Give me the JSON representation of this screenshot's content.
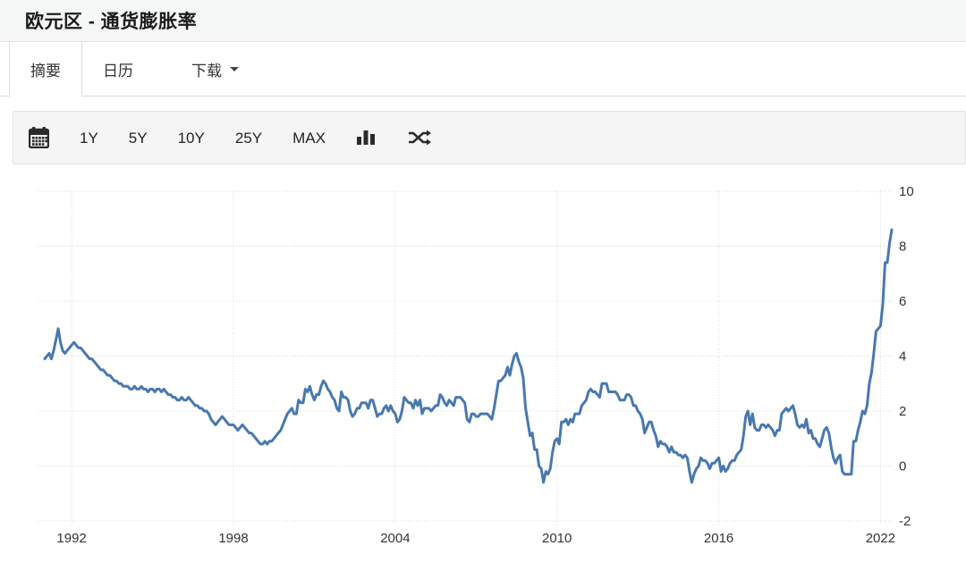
{
  "header": {
    "title": "欧元区 - 通货膨胀率"
  },
  "tabs": {
    "summary": "摘要",
    "calendar": "日历",
    "download": "下载"
  },
  "toolbar": {
    "ranges": [
      "1Y",
      "5Y",
      "10Y",
      "25Y",
      "MAX"
    ],
    "icons": [
      "calendar-icon",
      "bar-chart-icon",
      "shuffle-icon"
    ]
  },
  "colors": {
    "line": "#4878af",
    "grid": "#d9d9d9",
    "toolbar_bg": "#f5f5f5",
    "header_bg": "#f5f6f6",
    "border": "#e2e2e2",
    "text": "#333333"
  },
  "chart_data": {
    "type": "line",
    "title": "欧元区 - 通货膨胀率",
    "frequency": "monthly",
    "x_start": "1991-01",
    "x_end": "2022-06",
    "x_tick_labels": [
      "1992",
      "1998",
      "2004",
      "2010",
      "2016",
      "2022"
    ],
    "y_ticks": [
      10,
      8,
      6,
      4,
      2,
      0,
      -2
    ],
    "ylim": [
      -2,
      10
    ],
    "xlabel": "",
    "ylabel": "",
    "grid": "dotted",
    "legend": "none",
    "line_color": "#4878af",
    "values": [
      3.9,
      4.0,
      4.1,
      3.9,
      4.2,
      4.6,
      5.0,
      4.5,
      4.2,
      4.1,
      4.2,
      4.3,
      4.4,
      4.5,
      4.4,
      4.3,
      4.3,
      4.2,
      4.1,
      4.0,
      3.9,
      3.9,
      3.8,
      3.7,
      3.6,
      3.5,
      3.5,
      3.4,
      3.3,
      3.3,
      3.2,
      3.1,
      3.1,
      3.0,
      3.0,
      2.9,
      2.9,
      2.9,
      2.8,
      2.8,
      2.9,
      2.8,
      2.8,
      2.9,
      2.8,
      2.8,
      2.7,
      2.8,
      2.8,
      2.7,
      2.8,
      2.8,
      2.7,
      2.8,
      2.7,
      2.6,
      2.6,
      2.5,
      2.5,
      2.4,
      2.4,
      2.5,
      2.4,
      2.4,
      2.5,
      2.4,
      2.3,
      2.2,
      2.2,
      2.1,
      2.1,
      2.0,
      2.0,
      1.9,
      1.7,
      1.6,
      1.5,
      1.6,
      1.7,
      1.8,
      1.7,
      1.6,
      1.5,
      1.5,
      1.5,
      1.4,
      1.3,
      1.4,
      1.5,
      1.4,
      1.3,
      1.2,
      1.2,
      1.1,
      1.0,
      0.9,
      0.8,
      0.8,
      0.9,
      0.8,
      0.9,
      0.9,
      1.0,
      1.1,
      1.2,
      1.3,
      1.5,
      1.7,
      1.9,
      2.0,
      2.1,
      1.9,
      1.9,
      2.4,
      2.3,
      2.3,
      2.8,
      2.7,
      2.9,
      2.6,
      2.4,
      2.6,
      2.6,
      2.9,
      3.1,
      3.0,
      2.8,
      2.7,
      2.5,
      2.4,
      2.1,
      2.0,
      2.7,
      2.5,
      2.5,
      2.4,
      2.0,
      1.8,
      1.9,
      2.1,
      2.1,
      2.3,
      2.3,
      2.3,
      2.1,
      2.4,
      2.4,
      2.1,
      1.8,
      1.9,
      1.9,
      2.1,
      2.2,
      2.0,
      2.2,
      2.0,
      1.9,
      1.6,
      1.7,
      2.0,
      2.5,
      2.4,
      2.3,
      2.3,
      2.1,
      2.4,
      2.2,
      2.4,
      1.9,
      2.1,
      2.1,
      2.1,
      2.0,
      2.1,
      2.2,
      2.2,
      2.6,
      2.5,
      2.3,
      2.2,
      2.4,
      2.3,
      2.2,
      2.5,
      2.5,
      2.5,
      2.4,
      2.3,
      1.7,
      1.6,
      1.9,
      1.9,
      1.8,
      1.8,
      1.9,
      1.9,
      1.9,
      1.9,
      1.8,
      1.7,
      2.1,
      2.6,
      3.1,
      3.1,
      3.2,
      3.3,
      3.6,
      3.3,
      3.7,
      4.0,
      4.1,
      3.8,
      3.6,
      3.2,
      2.1,
      1.6,
      1.1,
      1.2,
      0.6,
      0.6,
      0.0,
      -0.1,
      -0.6,
      -0.2,
      -0.3,
      -0.1,
      0.5,
      0.9,
      1.0,
      0.8,
      1.6,
      1.6,
      1.7,
      1.5,
      1.7,
      1.6,
      1.9,
      1.9,
      1.9,
      2.2,
      2.3,
      2.4,
      2.7,
      2.8,
      2.7,
      2.7,
      2.6,
      2.5,
      3.0,
      3.0,
      3.0,
      2.7,
      2.7,
      2.7,
      2.7,
      2.6,
      2.4,
      2.4,
      2.4,
      2.6,
      2.6,
      2.5,
      2.2,
      2.2,
      2.0,
      1.9,
      1.7,
      1.2,
      1.4,
      1.6,
      1.6,
      1.3,
      1.1,
      0.7,
      0.9,
      0.8,
      0.8,
      0.7,
      0.5,
      0.7,
      0.5,
      0.5,
      0.4,
      0.4,
      0.3,
      0.4,
      0.3,
      -0.2,
      -0.6,
      -0.3,
      -0.1,
      0.0,
      0.3,
      0.2,
      0.2,
      0.1,
      -0.1,
      0.1,
      0.1,
      0.2,
      0.3,
      -0.2,
      0.0,
      -0.2,
      -0.1,
      0.1,
      0.2,
      0.2,
      0.4,
      0.5,
      0.6,
      1.1,
      1.8,
      2.0,
      1.5,
      1.9,
      1.4,
      1.3,
      1.3,
      1.5,
      1.5,
      1.4,
      1.5,
      1.4,
      1.3,
      1.1,
      1.3,
      1.3,
      1.9,
      2.0,
      2.1,
      2.0,
      2.1,
      2.2,
      1.9,
      1.5,
      1.4,
      1.5,
      1.4,
      1.7,
      1.2,
      1.3,
      1.0,
      1.0,
      0.8,
      0.7,
      1.0,
      1.3,
      1.4,
      1.2,
      0.7,
      0.3,
      0.1,
      0.3,
      0.4,
      -0.2,
      -0.3,
      -0.3,
      -0.3,
      -0.3,
      0.9,
      0.9,
      1.3,
      1.6,
      2.0,
      1.9,
      2.2,
      3.0,
      3.4,
      4.1,
      4.9,
      5.0,
      5.1,
      5.9,
      7.4,
      7.4,
      8.1,
      8.6
    ]
  }
}
